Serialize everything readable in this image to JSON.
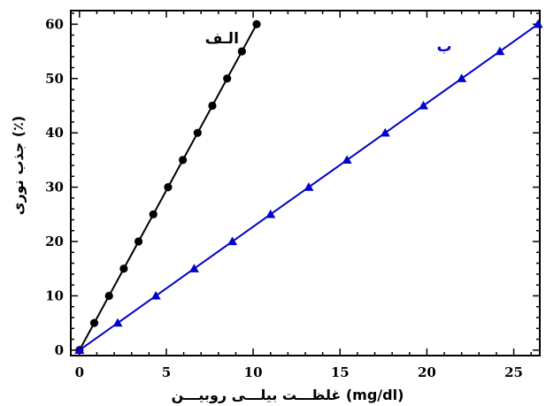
{
  "chart_data": {
    "type": "line",
    "title": "",
    "xlabel": "غلظـــت بیلـــی روبیـــن (mg/dl)",
    "ylabel": "جذب نوری (٪)",
    "xlim": [
      -0.5,
      26.5
    ],
    "ylim": [
      -1,
      62.5
    ],
    "x_ticks": [
      0,
      5,
      10,
      15,
      20,
      25
    ],
    "y_ticks": [
      0,
      10,
      20,
      30,
      40,
      50,
      60
    ],
    "grid": false,
    "series": [
      {
        "name": "الـف",
        "color": "#000000",
        "marker": "circle",
        "x": [
          0,
          0.85,
          1.7,
          2.55,
          3.4,
          4.25,
          5.1,
          5.95,
          6.8,
          7.65,
          8.5,
          9.35,
          10.2
        ],
        "y": [
          0,
          5,
          10,
          15,
          20,
          25,
          30,
          35,
          40,
          45,
          50,
          55,
          60
        ]
      },
      {
        "name": "ب",
        "color": "#0000cc",
        "marker": "triangle",
        "x": [
          0,
          2.2,
          4.4,
          6.6,
          8.8,
          11.0,
          13.2,
          15.4,
          17.6,
          19.8,
          22.0,
          24.2,
          26.4
        ],
        "y": [
          0,
          5,
          10,
          15,
          20,
          25,
          30,
          35,
          40,
          45,
          50,
          55,
          60
        ]
      }
    ]
  }
}
